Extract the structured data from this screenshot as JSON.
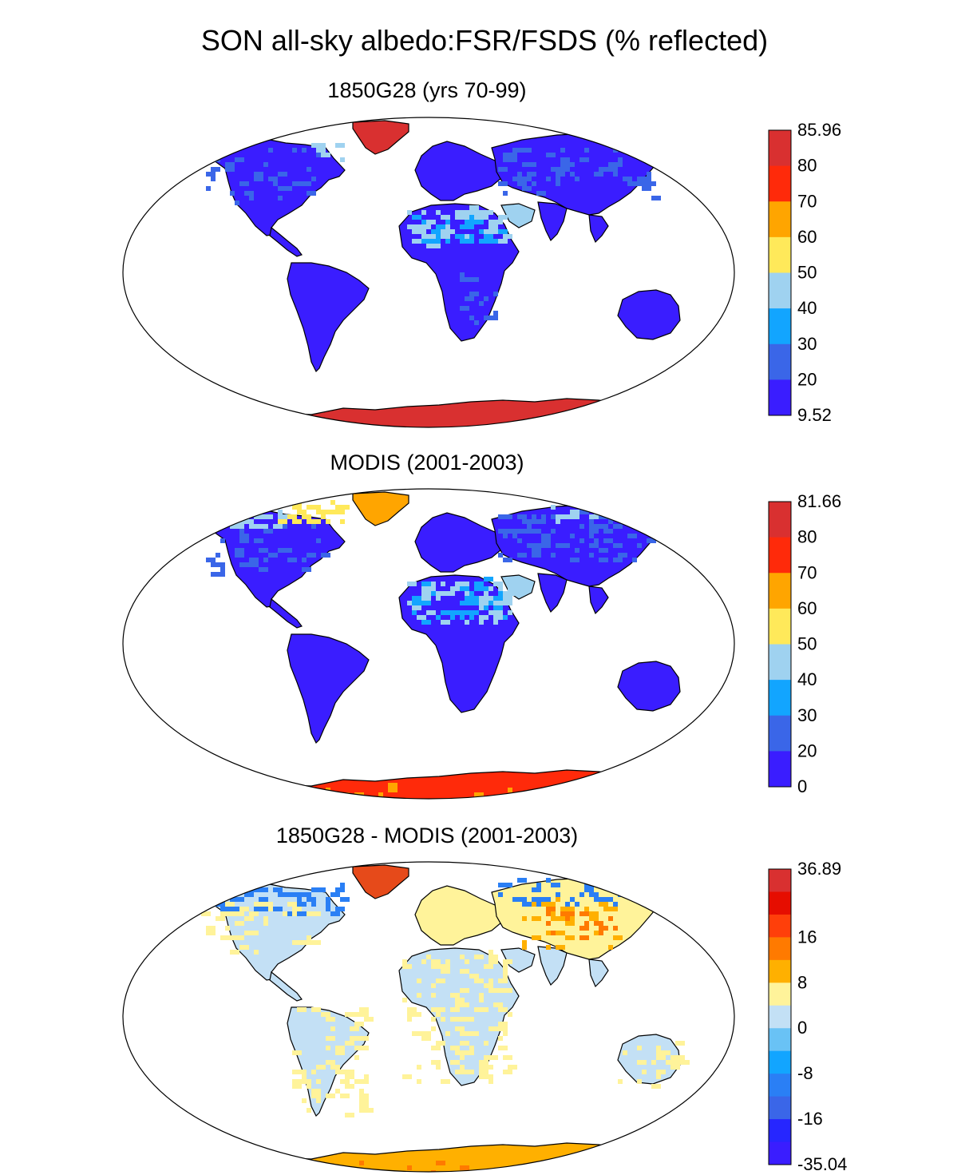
{
  "title": "SON all-sky albedo:FSR/FSDS (% reflected)",
  "colors": {
    "land_low": "#3a1dff",
    "land_mid": "#2a94f5",
    "desert": "#9fd2f0",
    "ice_high": "#d93030",
    "ice_modis": "#ff2a0a",
    "orange": "#ffa500",
    "pale_yellow": "#fff39a",
    "pale_blue": "#c3e0f5"
  },
  "panels": [
    {
      "title": "1850G28 (yrs 70-99)",
      "colorbar": {
        "labels": [
          "85.96",
          "80",
          "70",
          "60",
          "50",
          "40",
          "30",
          "20",
          "9.52"
        ],
        "colors": [
          "#d93030",
          "#ff2a0a",
          "#ffa500",
          "#ffe95a",
          "#9fd2f0",
          "#12a5ff",
          "#3a66e8",
          "#3a1dff"
        ]
      }
    },
    {
      "title": "MODIS (2001-2003)",
      "colorbar": {
        "labels": [
          "81.66",
          "80",
          "70",
          "60",
          "50",
          "40",
          "30",
          "20",
          "0"
        ],
        "colors": [
          "#d93030",
          "#ff2a0a",
          "#ffa500",
          "#ffe95a",
          "#9fd2f0",
          "#12a5ff",
          "#3a66e8",
          "#3a1dff"
        ]
      }
    },
    {
      "title": "1850G28 - MODIS (2001-2003)",
      "colorbar": {
        "labels": [
          "36.89",
          "16",
          "8",
          "0",
          "-8",
          "-16",
          "-35.04"
        ],
        "colors": [
          "#d93030",
          "#e60d00",
          "#ff3f0a",
          "#ff7a00",
          "#ffb000",
          "#fff39a",
          "#c3e0f5",
          "#69c2f5",
          "#12a5ff",
          "#2a7ff5",
          "#3a66e8",
          "#2626ff",
          "#3a1dff"
        ]
      }
    }
  ]
}
